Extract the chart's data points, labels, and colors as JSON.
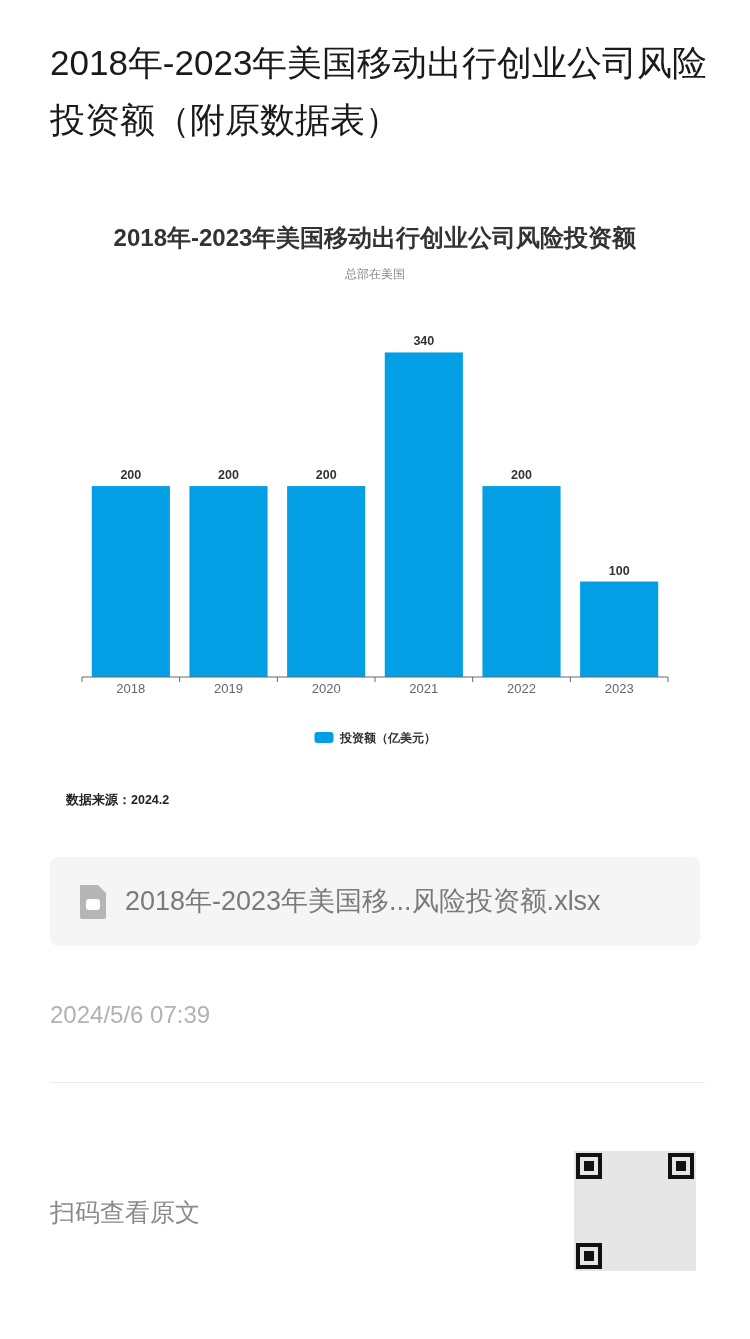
{
  "chart_data": [
    {
      "type": "other",
      "title": "2018年-2023年美国移动出行创业公司风险投资额（附原数据表）"
    },
    {
      "type": "bar",
      "title": "2018年-2023年美国移动出行创业公司风险投资额",
      "subtitle": "总部在美国",
      "categories": [
        "2018",
        "2019",
        "2020",
        "2021",
        "2022",
        "2023"
      ],
      "series": [
        {
          "name": "投资额（亿美元）",
          "color": "#039fe5",
          "values": [
            200,
            200,
            200,
            340,
            200,
            100
          ]
        }
      ],
      "data_labels": true,
      "legend": "bottom",
      "annotations": [
        "数据来源：2024.2"
      ]
    },
    {
      "type": "other",
      "annotations": [
        "2018年-2023年美国移...风险投资额.xlsx",
        "2024/5/6 07:39",
        "扫码查看原文"
      ]
    }
  ]
}
